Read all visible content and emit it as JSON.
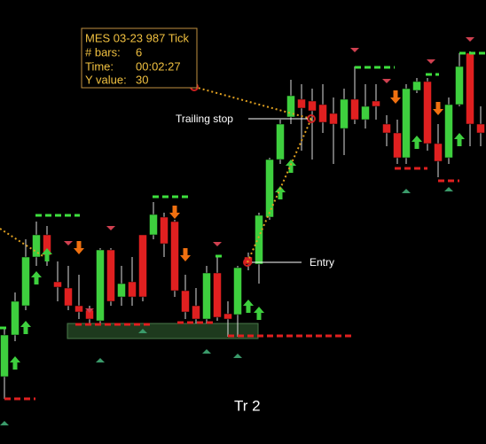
{
  "tooltip": {
    "title": "MES 03-23 987 Tick",
    "rows": [
      [
        "# bars:",
        "6"
      ],
      [
        "Time:",
        "00:02:27"
      ],
      [
        "Y value:",
        "30"
      ]
    ]
  },
  "labels": {
    "trailing_stop": "Trailing stop",
    "entry": "Entry",
    "trade": "Tr 2"
  }
}
